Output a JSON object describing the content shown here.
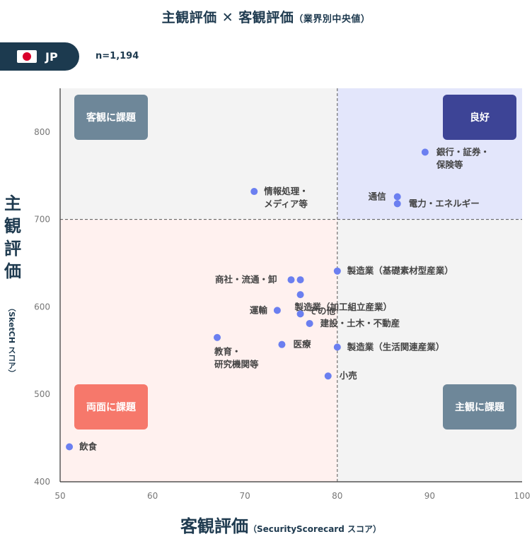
{
  "header": {
    "title": "主観評価 ✕ 客観評価",
    "title_suffix": "（業界別中央値）",
    "country": "JP",
    "sample": "n=1,194"
  },
  "chart_data": {
    "type": "scatter",
    "xlabel": "客観評価",
    "xlabel_sub": "（SecurityScorecard スコア）",
    "ylabel": "主観評価",
    "ylabel_sub": "（SketCH スコア）",
    "xlim": [
      50,
      100
    ],
    "ylim": [
      400,
      850
    ],
    "xticks": [
      50,
      60,
      70,
      80,
      90,
      100
    ],
    "yticks": [
      400,
      500,
      600,
      700,
      800
    ],
    "divider_x": 80,
    "divider_y": 700,
    "point_color": "#6b7ff0",
    "quadrants": [
      {
        "label": "客観に課題",
        "region": "top-left",
        "color": "#6e8799",
        "bg": "#f3f3f3"
      },
      {
        "label": "良好",
        "region": "top-right",
        "color": "#3d4496",
        "bg": "#e3e6fb"
      },
      {
        "label": "両面に課題",
        "region": "bottom-left",
        "color": "#f6786b",
        "bg": "#fff1ef"
      },
      {
        "label": "主観に課題",
        "region": "bottom-right",
        "color": "#6e8799",
        "bg": "#f3f3f3"
      }
    ],
    "points": [
      {
        "label": "銀行・証券・\n保険等",
        "x": 89.5,
        "y": 777
      },
      {
        "label": "情報処理・\nメディア等",
        "x": 71,
        "y": 732
      },
      {
        "label": "通信",
        "x": 86.5,
        "y": 726
      },
      {
        "label": "電力・エネルギー",
        "x": 86.5,
        "y": 718
      },
      {
        "label": "製造業（基礎素材型産業）",
        "x": 80,
        "y": 641
      },
      {
        "label": "商社・流通・卸",
        "x": 75,
        "y": 631
      },
      {
        "label": "",
        "x": 76,
        "y": 631
      },
      {
        "label": "製造業（加工組立産業）",
        "x": 76,
        "y": 614
      },
      {
        "label": "運輸",
        "x": 73.5,
        "y": 596
      },
      {
        "label": "その他",
        "x": 76,
        "y": 592
      },
      {
        "label": "建設・土木・不動産",
        "x": 77,
        "y": 581
      },
      {
        "label": "教育・\n研究機関等",
        "x": 67,
        "y": 565
      },
      {
        "label": "医療",
        "x": 74,
        "y": 557
      },
      {
        "label": "製造業（生活関連産業）",
        "x": 80,
        "y": 554
      },
      {
        "label": "小売",
        "x": 79,
        "y": 521
      },
      {
        "label": "飲食",
        "x": 51,
        "y": 440
      }
    ]
  }
}
